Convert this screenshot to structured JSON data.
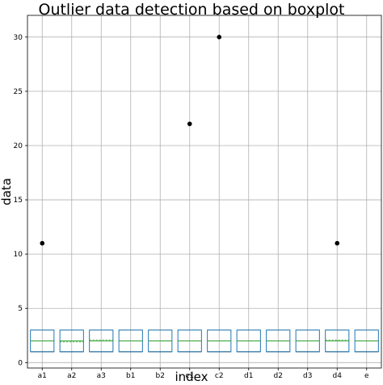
{
  "chart_data": {
    "type": "boxplot",
    "title": "Outlier data detection based on boxplot",
    "xlabel": "index",
    "ylabel": "data",
    "ylim": [
      -0.5,
      32
    ],
    "yticks": [
      0,
      5,
      10,
      15,
      20,
      25,
      30
    ],
    "grid": true,
    "categories": [
      "a1",
      "a2",
      "a3",
      "b1",
      "b2",
      "c1",
      "c2",
      "d1",
      "d2",
      "d3",
      "d4",
      "e"
    ],
    "boxes": [
      {
        "min": 1,
        "q1": 1,
        "median": 2,
        "mean": 2,
        "q3": 3,
        "max": 3,
        "outliers": [
          11
        ]
      },
      {
        "min": 1,
        "q1": 1,
        "median": 2,
        "mean": 1.9,
        "q3": 3,
        "max": 3,
        "outliers": []
      },
      {
        "min": 1,
        "q1": 1,
        "median": 2,
        "mean": 2.1,
        "q3": 3,
        "max": 3,
        "outliers": []
      },
      {
        "min": 1,
        "q1": 1,
        "median": 2,
        "mean": 2,
        "q3": 3,
        "max": 3,
        "outliers": []
      },
      {
        "min": 1,
        "q1": 1,
        "median": 2,
        "mean": 2,
        "q3": 3,
        "max": 3,
        "outliers": []
      },
      {
        "min": 1,
        "q1": 1,
        "median": 2,
        "mean": 2,
        "q3": 3,
        "max": 3,
        "outliers": [
          22
        ]
      },
      {
        "min": 1,
        "q1": 1,
        "median": 2,
        "mean": 2,
        "q3": 3,
        "max": 3,
        "outliers": [
          30
        ]
      },
      {
        "min": 1,
        "q1": 1,
        "median": 2,
        "mean": 2,
        "q3": 3,
        "max": 3,
        "outliers": []
      },
      {
        "min": 1,
        "q1": 1,
        "median": 2,
        "mean": 2,
        "q3": 3,
        "max": 3,
        "outliers": []
      },
      {
        "min": 1,
        "q1": 1,
        "median": 2,
        "mean": 2,
        "q3": 3,
        "max": 3,
        "outliers": []
      },
      {
        "min": 1,
        "q1": 1,
        "median": 2,
        "mean": 2.1,
        "q3": 3,
        "max": 3,
        "outliers": [
          11
        ]
      },
      {
        "min": 1,
        "q1": 1,
        "median": 2,
        "mean": 2,
        "q3": 3,
        "max": 3,
        "outliers": []
      }
    ],
    "colors": {
      "box": "#1f77b4",
      "median": "#2ca02c",
      "whisker": "#000000",
      "outlier": "#000000",
      "grid": "#b0b0b0"
    }
  }
}
